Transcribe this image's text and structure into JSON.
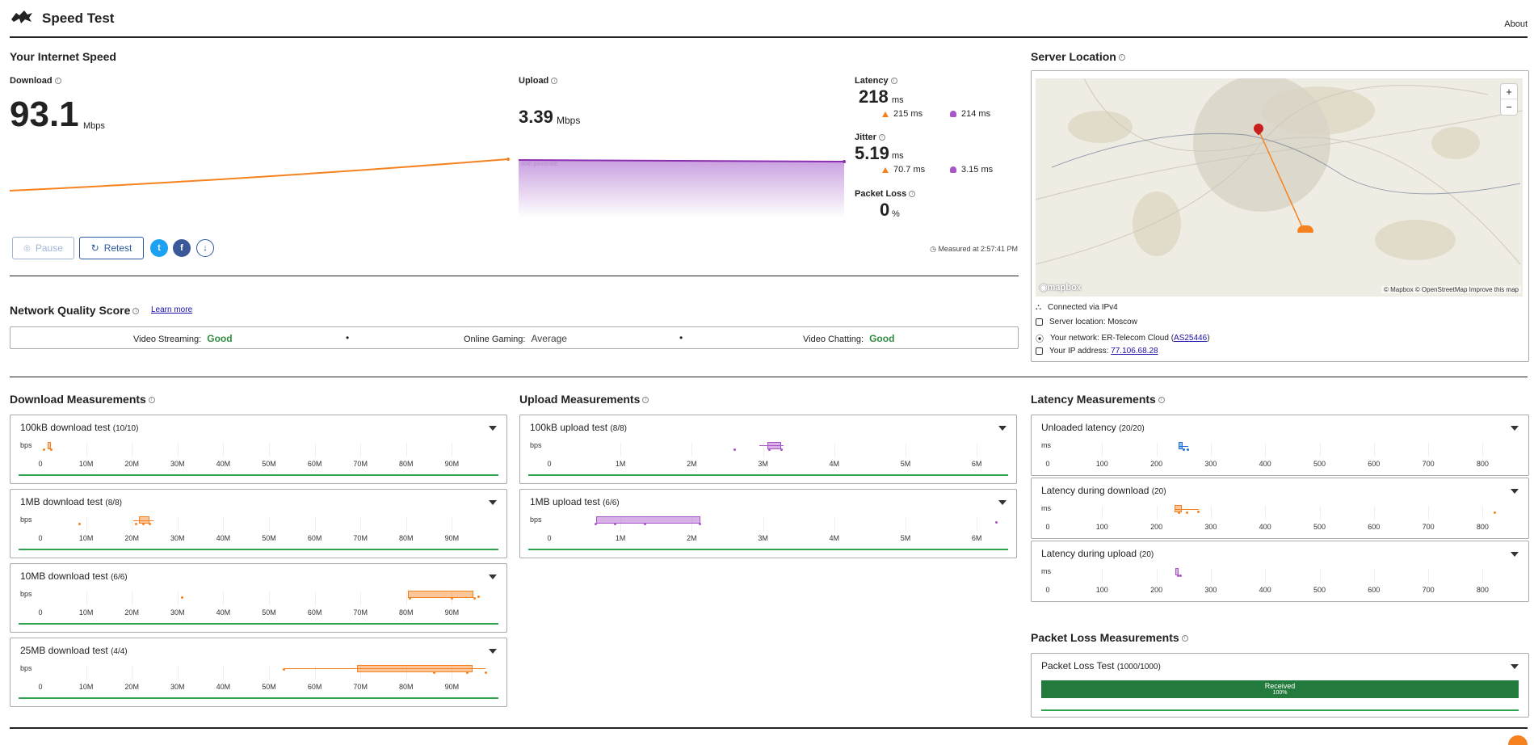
{
  "header": {
    "title": "Speed Test",
    "about": "About"
  },
  "speed": {
    "section_title": "Your Internet Speed",
    "download": {
      "label": "Download",
      "value": "93.1",
      "unit": "Mbps"
    },
    "upload": {
      "label": "Upload",
      "value": "3.39",
      "unit": "Mbps",
      "percentile_label": "90th percentile"
    },
    "latency": {
      "label": "Latency",
      "value": "218",
      "unit": "ms",
      "down": "215 ms",
      "up": "214 ms"
    },
    "jitter": {
      "label": "Jitter",
      "value": "5.19",
      "unit": "ms",
      "down": "70.7 ms",
      "up": "3.15 ms"
    },
    "packet_loss": {
      "label": "Packet Loss",
      "value": "0",
      "unit": "%"
    },
    "pause": "Pause",
    "retest": "Retest",
    "measured": "Measured at 2:57:41 PM"
  },
  "nqs": {
    "title": "Network Quality Score",
    "learn_more": "Learn more",
    "streaming_label": "Video Streaming:",
    "streaming_value": "Good",
    "gaming_label": "Online Gaming:",
    "gaming_value": "Average",
    "chatting_label": "Video Chatting:",
    "chatting_value": "Good",
    "sep": "•",
    "colors": {
      "good": "#2e8b3e",
      "average": "#444444"
    }
  },
  "server": {
    "title": "Server Location",
    "zoom_in": "+",
    "zoom_out": "−",
    "mapbox": "mapbox",
    "attribution": "© Mapbox © OpenStreetMap  Improve this map",
    "connected": "Connected via IPv4",
    "location": "Server location: Moscow",
    "network_prefix": "Your network: ER-Telecom Cloud (",
    "asn": "AS25446",
    "network_suffix": ")",
    "ip_prefix": "Your IP address: ",
    "ip": "77.106.68.28"
  },
  "download_measurements": {
    "title": "Download Measurements",
    "ticks": [
      "0",
      "10M",
      "20M",
      "30M",
      "40M",
      "50M",
      "60M",
      "70M",
      "80M",
      "90M"
    ],
    "unit": "bps",
    "tests": [
      {
        "label": "100kB download test",
        "count": "(10/10)"
      },
      {
        "label": "1MB download test",
        "count": "(8/8)"
      },
      {
        "label": "10MB download test",
        "count": "(6/6)"
      },
      {
        "label": "25MB download test",
        "count": "(4/4)"
      }
    ]
  },
  "upload_measurements": {
    "title": "Upload Measurements",
    "ticks": [
      "0",
      "1M",
      "2M",
      "3M",
      "4M",
      "5M",
      "6M"
    ],
    "unit": "bps",
    "tests": [
      {
        "label": "100kB upload test",
        "count": "(8/8)"
      },
      {
        "label": "1MB upload test",
        "count": "(6/6)"
      }
    ]
  },
  "latency_measurements": {
    "title": "Latency Measurements",
    "ticks": [
      "0",
      "100",
      "200",
      "300",
      "400",
      "500",
      "600",
      "700",
      "800"
    ],
    "unit": "ms",
    "tests": [
      {
        "label": "Unloaded latency",
        "count": "(20/20)"
      },
      {
        "label": "Latency during download",
        "count": "(20)"
      },
      {
        "label": "Latency during upload",
        "count": "(20)"
      }
    ]
  },
  "packet_loss_measurements": {
    "title": "Packet Loss Measurements",
    "test_label": "Packet Loss Test",
    "count": "(1000/1000)",
    "received": "Received",
    "percent": "100%"
  },
  "colors": {
    "orange": "#f6821f",
    "purple": "#a855c7",
    "blue": "#1e6fd9",
    "green": "#2e8b3e",
    "link": "#2c5aa0"
  }
}
